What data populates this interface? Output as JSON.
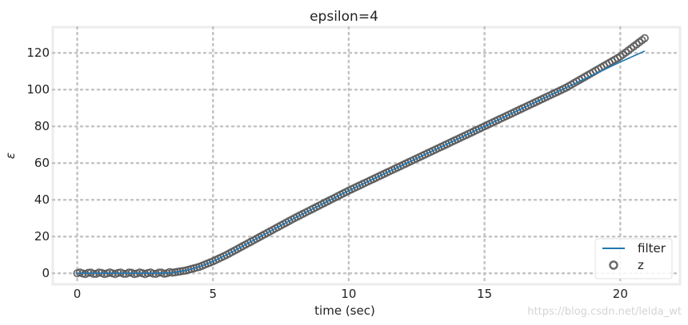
{
  "chart_data": {
    "type": "line",
    "title": "epsilon=4",
    "xlabel": "time (sec)",
    "ylabel": "ε",
    "xlim": [
      -0.9,
      22.2
    ],
    "ylim": [
      -6,
      134
    ],
    "xticks": [
      0,
      5,
      10,
      15,
      20
    ],
    "yticks": [
      0,
      20,
      40,
      60,
      80,
      100,
      120
    ],
    "xtick_labels": [
      "0",
      "5",
      "10",
      "15",
      "20"
    ],
    "ytick_labels": [
      "0",
      "20",
      "40",
      "60",
      "80",
      "100",
      "120"
    ],
    "grid": true,
    "legend_position": "lower-right",
    "dt": 0.1,
    "series": [
      {
        "name": "filter",
        "kind": "line",
        "color": "#1f77b4",
        "x": [
          0,
          3.0,
          3.5,
          4.0,
          4.5,
          5.0,
          5.5,
          6.0,
          7.0,
          8.0,
          10.0,
          12.0,
          14.0,
          16.0,
          18.0,
          20.0,
          20.9
        ],
        "y": [
          0,
          0,
          0.3,
          1.5,
          3.5,
          6.5,
          10.0,
          14.0,
          22.0,
          30.0,
          45.0,
          59.0,
          73.0,
          87.0,
          101.0,
          115.0,
          121.0
        ]
      },
      {
        "name": "z",
        "kind": "scatter",
        "color": "#555555",
        "x": [
          0,
          3.0,
          3.5,
          4.0,
          4.5,
          5.0,
          5.5,
          6.0,
          7.0,
          8.0,
          10.0,
          12.0,
          14.0,
          16.0,
          18.0,
          20.0,
          20.9
        ],
        "y": [
          0,
          0,
          0.3,
          1.5,
          3.5,
          6.5,
          10.0,
          14.0,
          22.0,
          30.0,
          45.0,
          59.0,
          73.0,
          87.0,
          101.0,
          118.0,
          128.0
        ]
      }
    ]
  },
  "watermark": "https://blog.csdn.net/lelda_wt"
}
